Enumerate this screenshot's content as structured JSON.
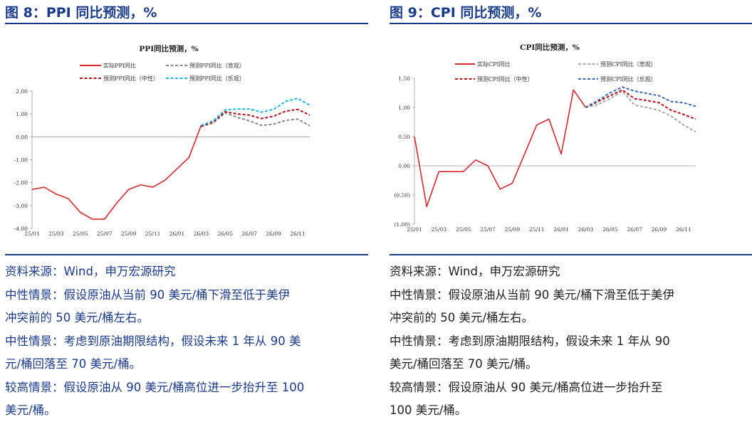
{
  "fig8": {
    "title": "图 8：PPI 同比预测，%",
    "notes": [
      "资料来源：Wind，申万宏源研究",
      "中性情景：假设原油从当前 90 美元/桶下滑至低于美伊",
      "冲突前的 50 美元/桶左右。",
      "中性情景：考虑到原油期限结构，假设未来 1 年从 90 美",
      "元/桶回落至 70 美元/桶。",
      "较高情景：假设原油从 90 美元/桶高位进一步抬升至 100",
      "美元/桶。"
    ]
  },
  "fig9": {
    "title": "图 9：CPI 同比预测，%",
    "notes": [
      "资料来源：Wind，申万宏源研究",
      "中性情景：假设原油从当前 90 美元/桶下滑至低于美伊",
      "冲突前的 50 美元/桶左右。",
      "中性情景：考虑到原油期限结构，假设未来 1 年从 90",
      "美元/桶回落至 70 美元/桶。",
      "较高情景：假设原油从 90 美元/桶高位进一步抬升至",
      "100 美元/桶。"
    ]
  },
  "chart_data": [
    {
      "type": "line",
      "title": "PPI同比预测，%",
      "xlabel": "",
      "ylabel": "",
      "ylim": [
        -4,
        2
      ],
      "yticks": [
        -4,
        -3,
        -2,
        -1,
        0,
        1,
        2
      ],
      "ytick_labels": [
        "-4.00",
        "-3.00",
        "-2.00",
        "-1.00",
        "0.00",
        "1.00",
        "2.00"
      ],
      "n_points": 24,
      "x_tick_labels": [
        "25/01",
        "25/03",
        "25/05",
        "25/07",
        "25/09",
        "25/11",
        "26/01",
        "26/03",
        "26/05",
        "26/07",
        "26/09",
        "26/11"
      ],
      "legend": "top",
      "series": [
        {
          "name": "实际PPI同比",
          "color": "#d9282f",
          "dash": "solid",
          "start": 0,
          "values": [
            -2.3,
            -2.2,
            -2.5,
            -2.7,
            -3.3,
            -3.6,
            -3.6,
            -2.9,
            -2.3,
            -2.1,
            -2.2,
            -1.9,
            -1.4,
            -0.9,
            0.5
          ]
        },
        {
          "name": "预测PPI同比（悲观）",
          "color": "#888888",
          "dash": "dashed",
          "start": 14,
          "values": [
            0.45,
            0.6,
            1.05,
            0.85,
            0.7,
            0.5,
            0.55,
            0.72,
            0.78,
            0.48
          ]
        },
        {
          "name": "预测PPI同比（中性）",
          "color": "#b3101c",
          "dash": "dashed",
          "start": 14,
          "values": [
            0.45,
            0.65,
            1.1,
            1.0,
            0.95,
            0.8,
            0.9,
            1.12,
            1.2,
            0.95
          ]
        },
        {
          "name": "预测PPI同比（乐观）",
          "color": "#1ab6e8",
          "dash": "dashed",
          "start": 14,
          "values": [
            0.5,
            0.7,
            1.18,
            1.22,
            1.22,
            1.08,
            1.2,
            1.55,
            1.68,
            1.38
          ]
        }
      ]
    },
    {
      "type": "line",
      "title": "CPI同比预测，%",
      "xlabel": "",
      "ylabel": "",
      "ylim": [
        -1,
        1.5
      ],
      "yticks": [
        -1,
        -0.5,
        0,
        0.5,
        1,
        1.5
      ],
      "ytick_labels": [
        "(1.00)",
        "(0.50)",
        "0.00",
        "0.50",
        "1.00",
        "1.50"
      ],
      "n_points": 24,
      "x_tick_labels": [
        "25/01",
        "25/03",
        "25/05",
        "25/07",
        "25/09",
        "25/11",
        "26/01",
        "26/03",
        "26/05",
        "26/07",
        "26/09",
        "26/11"
      ],
      "legend": "top",
      "series": [
        {
          "name": "实际CPI同比",
          "color": "#d9282f",
          "dash": "solid",
          "start": 0,
          "values": [
            0.5,
            -0.7,
            -0.1,
            -0.1,
            -0.1,
            0.1,
            0.0,
            -0.4,
            -0.3,
            0.2,
            0.7,
            0.8,
            0.2,
            1.3,
            1.0
          ]
        },
        {
          "name": "预测CPI同比（悲观）",
          "color": "#aaaaaa",
          "dash": "dashed",
          "start": 14,
          "values": [
            1.0,
            1.05,
            1.15,
            1.28,
            1.04,
            1.0,
            0.95,
            0.85,
            0.7,
            0.58
          ]
        },
        {
          "name": "预测CPI同比（中性）",
          "color": "#c0101c",
          "dash": "dashed",
          "start": 14,
          "values": [
            1.0,
            1.1,
            1.2,
            1.3,
            1.15,
            1.12,
            1.08,
            0.95,
            0.88,
            0.8
          ]
        },
        {
          "name": "预测CPI同比（乐观）",
          "color": "#3a68b4",
          "dash": "dashed",
          "start": 14,
          "values": [
            1.0,
            1.12,
            1.25,
            1.35,
            1.28,
            1.24,
            1.2,
            1.1,
            1.08,
            1.02
          ]
        }
      ]
    }
  ]
}
